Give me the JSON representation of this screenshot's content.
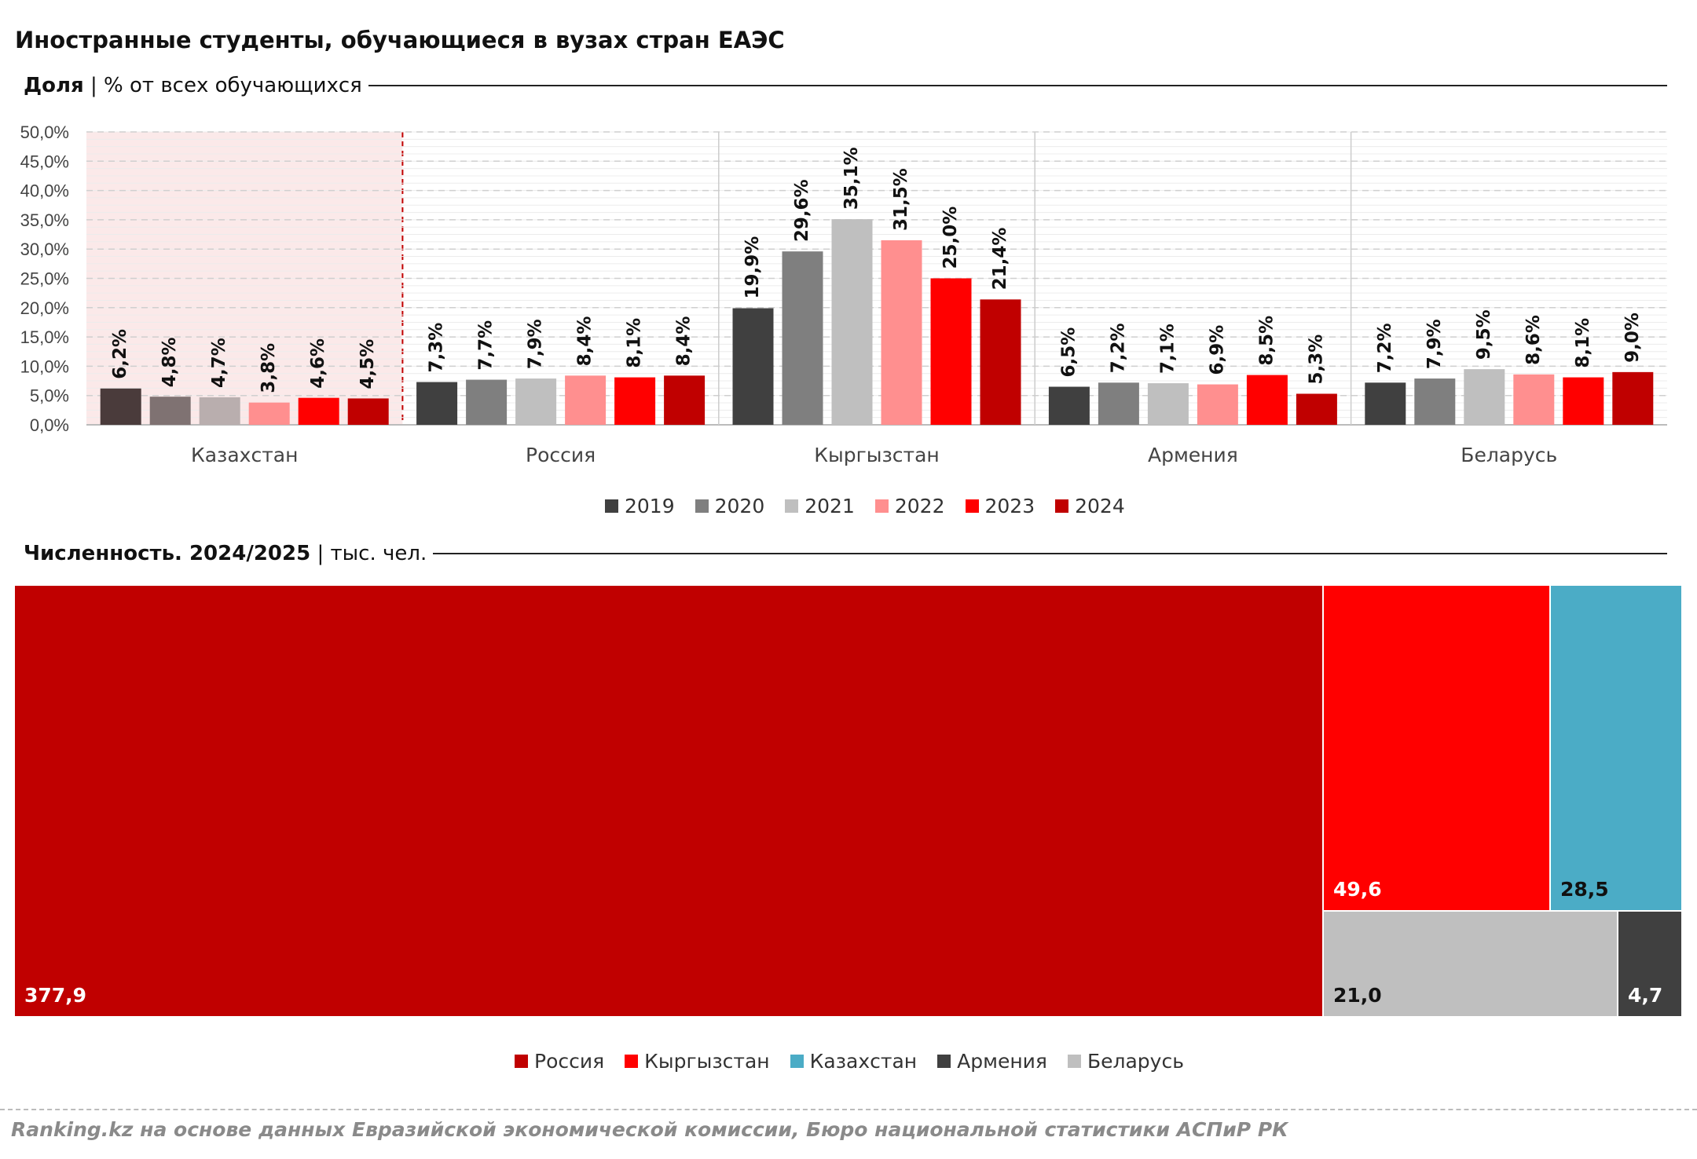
{
  "title": "Иностранные студенты, обучающиеся в вузах стран ЕАЭС",
  "section1": {
    "bold": "Доля",
    "rest": " | % от всех обучающихся"
  },
  "section2": {
    "bold": "Численность. 2024/2025",
    "rest": " | тыс. чел."
  },
  "source": "Ranking.kz на основе данных Евразийской экономической комиссии, Бюро национальной статистики АСПиР РК",
  "chart_data": [
    {
      "type": "bar",
      "categories": [
        "Казахстан",
        "Россия",
        "Кыргызстан",
        "Армения",
        "Беларусь"
      ],
      "ylim": [
        0,
        50
      ],
      "yticks": [
        "0,0%",
        "5,0%",
        "10,0%",
        "15,0%",
        "20,0%",
        "25,0%",
        "30,0%",
        "35,0%",
        "40,0%",
        "45,0%",
        "50,0%"
      ],
      "grid": true,
      "highlighted_category": "Казахстан",
      "legend_position": "bottom",
      "series": [
        {
          "name": "2019",
          "color": "#404040",
          "values": [
            6.2,
            7.3,
            19.9,
            6.5,
            7.2
          ],
          "labels": [
            "6,2%",
            "7,3%",
            "19,9%",
            "6,5%",
            "7,2%"
          ]
        },
        {
          "name": "2020",
          "color": "#7f7f7f",
          "values": [
            4.8,
            7.7,
            29.6,
            7.2,
            7.9
          ],
          "labels": [
            "4,8%",
            "7,7%",
            "29,6%",
            "7,2%",
            "7,9%"
          ]
        },
        {
          "name": "2021",
          "color": "#bfbfbf",
          "values": [
            4.7,
            7.9,
            35.1,
            7.1,
            9.5
          ],
          "labels": [
            "4,7%",
            "7,9%",
            "35,1%",
            "7,1%",
            "9,5%"
          ]
        },
        {
          "name": "2022",
          "color": "#ff8f8f",
          "values": [
            3.8,
            8.4,
            31.5,
            6.9,
            8.6
          ],
          "labels": [
            "3,8%",
            "8,4%",
            "31,5%",
            "6,9%",
            "8,6%"
          ]
        },
        {
          "name": "2023",
          "color": "#ff0000",
          "values": [
            4.6,
            8.1,
            25.0,
            8.5,
            8.1
          ],
          "labels": [
            "4,6%",
            "8,1%",
            "25,0%",
            "8,5%",
            "8,1%"
          ]
        },
        {
          "name": "2024",
          "color": "#c00000",
          "values": [
            4.5,
            8.4,
            21.4,
            5.3,
            9.0
          ],
          "labels": [
            "4,5%",
            "8,4%",
            "21,4%",
            "5,3%",
            "9,0%"
          ]
        }
      ]
    },
    {
      "type": "treemap",
      "unit": "тыс. чел.",
      "items": [
        {
          "name": "Россия",
          "value": 377.9,
          "label": "377,9",
          "color": "#c00000"
        },
        {
          "name": "Кыргызстан",
          "value": 49.6,
          "label": "49,6",
          "color": "#ff0000"
        },
        {
          "name": "Казахстан",
          "value": 28.5,
          "label": "28,5",
          "color": "#4bacc6"
        },
        {
          "name": "Армения",
          "value": 4.7,
          "label": "4,7",
          "color": "#404040"
        },
        {
          "name": "Беларусь",
          "value": 21.0,
          "label": "21,0",
          "color": "#bfbfbf"
        }
      ],
      "legend_position": "bottom"
    }
  ]
}
